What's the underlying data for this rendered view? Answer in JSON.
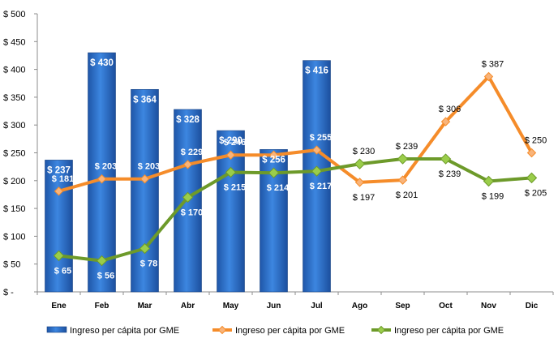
{
  "chart_data": {
    "type": "bar",
    "categories": [
      "Ene",
      "Feb",
      "Mar",
      "Abr",
      "May",
      "Jun",
      "Jul",
      "Ago",
      "Sep",
      "Oct",
      "Nov",
      "Dic"
    ],
    "ylim": [
      0,
      500
    ],
    "yticks": [
      {
        "value": 0,
        "label": "$ -"
      },
      {
        "value": 50,
        "label": "$ 50"
      },
      {
        "value": 100,
        "label": "$ 100"
      },
      {
        "value": 150,
        "label": "$ 150"
      },
      {
        "value": 200,
        "label": "$ 200"
      },
      {
        "value": 250,
        "label": "$ 250"
      },
      {
        "value": 300,
        "label": "$ 300"
      },
      {
        "value": 350,
        "label": "$ 350"
      },
      {
        "value": 400,
        "label": "$ 400"
      },
      {
        "value": 450,
        "label": "$ 450"
      },
      {
        "value": 500,
        "label": "$ 500"
      }
    ],
    "grid": false,
    "legend_position": "bottom",
    "series": [
      {
        "name": "Ingreso per cápita por GME",
        "kind": "bar",
        "color": "#2e6fc9",
        "values": [
          237,
          430,
          364,
          328,
          290,
          256,
          416,
          null,
          null,
          null,
          null,
          null
        ],
        "labels": [
          "$ 237",
          "$ 430",
          "$ 364",
          "$ 328",
          "$ 290",
          "$ 256",
          "$ 416",
          "",
          "",
          "",
          "",
          ""
        ]
      },
      {
        "name": "Ingreso per cápita por GME",
        "kind": "line",
        "color": "#f58c2a",
        "marker_color": "#f9b47a",
        "values": [
          181,
          203,
          203,
          229,
          246,
          246,
          255,
          197,
          201,
          306,
          387,
          250
        ],
        "labels": [
          "$ 181",
          "$ 203",
          "$ 203",
          "$ 229",
          "$ 246",
          "$ 246",
          "$ 255",
          "$ 197",
          "$ 201",
          "$ 306",
          "$ 387",
          "$ 250"
        ]
      },
      {
        "name": "Ingreso per cápita por GME",
        "kind": "line",
        "color": "#6d9a2a",
        "marker_color": "#9acd4a",
        "values": [
          65,
          56,
          78,
          170,
          215,
          214,
          217,
          230,
          239,
          239,
          199,
          205
        ],
        "labels": [
          "$ 65",
          "$ 56",
          "$ 78",
          "$ 170",
          "$ 215",
          "$ 214",
          "$ 217",
          "$ 230",
          "$ 239",
          "$ 239",
          "$ 199",
          "$ 205"
        ]
      }
    ]
  }
}
